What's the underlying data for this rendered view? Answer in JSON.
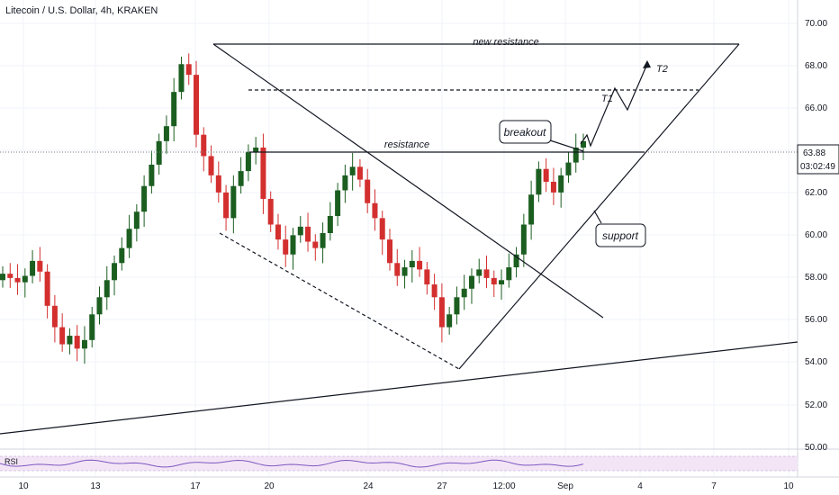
{
  "header": {
    "title": "Litecoin / U.S. Dollar, 4h, KRAKEN"
  },
  "colors": {
    "up": "#26a69a",
    "down": "#ef5350",
    "upbody": "#1b5e20",
    "downbody": "#d32f2f",
    "price_tag": "#ffffff",
    "rsi_line": "#7e57c2",
    "rsi_band": "#e1bee7"
  },
  "price_axis": {
    "ticks": [
      "70.00",
      "68.00",
      "66.00",
      "64.00",
      "62.00",
      "60.00",
      "58.00",
      "56.00",
      "54.00",
      "52.00",
      "50.00"
    ],
    "current_price": "63.88",
    "countdown": "03:02:49"
  },
  "time_axis": {
    "labels": [
      "10",
      "13",
      "17",
      "20",
      "24",
      "27",
      "12:00",
      "Sep",
      "4",
      "7",
      "10"
    ]
  },
  "rsi_panel": {
    "label": "RSI"
  },
  "annotations": {
    "new_resistance": "new resistance",
    "resistance": "resistance",
    "breakout": "breakout",
    "support": "support",
    "t1": "T1",
    "t2": "T2"
  },
  "chart_data": {
    "type": "candlestick",
    "title": "Litecoin / U.S. Dollar, 4h, KRAKEN",
    "ylim": [
      49.5,
      70.5
    ],
    "x_ticks": [
      "10",
      "13",
      "17",
      "20",
      "24",
      "27",
      "12:00",
      "Sep",
      "4",
      "7",
      "10"
    ],
    "levels": [
      {
        "label": "new resistance",
        "value": 68.9
      },
      {
        "label": "resistance",
        "value": 63.9
      },
      {
        "label": "T1",
        "value": 66.85
      },
      {
        "label": "T2",
        "value": 68.1
      }
    ],
    "approx_closes": [
      57.7,
      57.5,
      57.3,
      57.6,
      58.3,
      57.8,
      56.2,
      55.2,
      54.4,
      54.8,
      54.2,
      54.6,
      55.8,
      56.6,
      57.4,
      58.2,
      58.9,
      59.8,
      60.6,
      61.8,
      62.8,
      63.9,
      64.6,
      66.2,
      67.5,
      67.0,
      64.2,
      63.2,
      62.3,
      61.5,
      60.3,
      61.8,
      62.5,
      63.4,
      63.6,
      61.2,
      60.0,
      59.3,
      58.6,
      59.5,
      59.9,
      59.2,
      58.9,
      59.6,
      60.4,
      61.6,
      62.3,
      62.7,
      62.1,
      61.0,
      60.3,
      59.3,
      58.2,
      57.6,
      58.0,
      58.3,
      57.9,
      57.2,
      56.6,
      55.2,
      55.8,
      56.6,
      57.0,
      57.6,
      57.9,
      57.5,
      57.2,
      57.4,
      58.0,
      58.6,
      60.0,
      61.4,
      62.6,
      62.0,
      61.5,
      62.3,
      62.9,
      63.6,
      63.9
    ]
  }
}
